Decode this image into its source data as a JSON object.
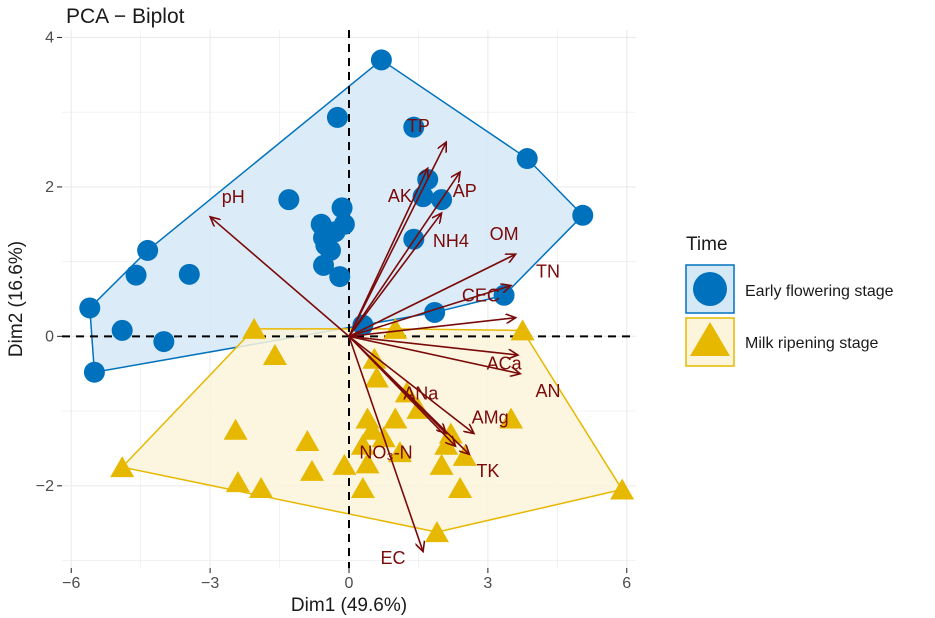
{
  "chart_data": {
    "type": "scatter",
    "title": "PCA − Biplot",
    "xlabel": "Dim1 (49.6%)",
    "ylabel": "Dim2 (16.6%)",
    "xlim": [
      -6.2,
      6.2
    ],
    "ylim": [
      -3.1,
      4.1
    ],
    "xticks": [
      -6,
      -3,
      0,
      3,
      6
    ],
    "xtick_labels": [
      "−6",
      "−3",
      "0",
      "3",
      "6"
    ],
    "yticks": [
      -2,
      0,
      2,
      4
    ],
    "ytick_labels": [
      "−2",
      "0",
      "2",
      "4"
    ],
    "grid": true,
    "legend": {
      "title": "Time",
      "position": "right",
      "entries": [
        "Early flowering stage",
        "Milk ripening stage"
      ]
    },
    "series": [
      {
        "name": "Early flowering stage",
        "marker": "circle",
        "color": "#0072BD",
        "fill": "#D5E8F6",
        "points": [
          [
            0.7,
            3.7
          ],
          [
            -0.25,
            2.93
          ],
          [
            1.4,
            2.8
          ],
          [
            3.85,
            2.38
          ],
          [
            5.05,
            1.62
          ],
          [
            1.7,
            2.1
          ],
          [
            1.6,
            1.87
          ],
          [
            2.0,
            1.83
          ],
          [
            -1.3,
            1.83
          ],
          [
            -0.15,
            1.72
          ],
          [
            -0.1,
            1.5
          ],
          [
            -0.6,
            1.5
          ],
          [
            -0.3,
            1.4
          ],
          [
            -0.55,
            1.32
          ],
          [
            -0.5,
            1.22
          ],
          [
            -0.4,
            1.15
          ],
          [
            1.4,
            1.3
          ],
          [
            -4.35,
            1.15
          ],
          [
            -3.45,
            0.83
          ],
          [
            -4.6,
            0.82
          ],
          [
            -0.2,
            0.8
          ],
          [
            -0.55,
            0.95
          ],
          [
            3.35,
            0.55
          ],
          [
            1.85,
            0.32
          ],
          [
            -5.6,
            0.38
          ],
          [
            -4.9,
            0.08
          ],
          [
            -4.0,
            -0.07
          ],
          [
            0.3,
            0.15
          ],
          [
            -5.5,
            -0.48
          ]
        ]
      },
      {
        "name": "Milk ripening stage",
        "marker": "triangle",
        "color": "#E7B800",
        "fill": "#FCF5DC",
        "points": [
          [
            -2.05,
            0.1
          ],
          [
            1.0,
            0.1
          ],
          [
            3.75,
            0.08
          ],
          [
            -1.6,
            -0.25
          ],
          [
            0.55,
            -0.3
          ],
          [
            0.6,
            -0.55
          ],
          [
            1.25,
            -0.75
          ],
          [
            1.5,
            -0.97
          ],
          [
            1.0,
            -1.1
          ],
          [
            0.4,
            -1.1
          ],
          [
            3.5,
            -1.1
          ],
          [
            0.5,
            -1.25
          ],
          [
            -2.45,
            -1.25
          ],
          [
            0.75,
            -1.35
          ],
          [
            2.2,
            -1.3
          ],
          [
            0.3,
            -1.45
          ],
          [
            -0.9,
            -1.4
          ],
          [
            1.1,
            -1.55
          ],
          [
            2.1,
            -1.45
          ],
          [
            2.5,
            -1.6
          ],
          [
            -0.1,
            -1.72
          ],
          [
            0.4,
            -1.7
          ],
          [
            2.0,
            -1.72
          ],
          [
            -0.8,
            -1.8
          ],
          [
            -4.9,
            -1.75
          ],
          [
            -2.4,
            -1.95
          ],
          [
            -1.9,
            -2.03
          ],
          [
            0.3,
            -2.03
          ],
          [
            2.4,
            -2.03
          ],
          [
            5.9,
            -2.05
          ],
          [
            1.9,
            -2.62
          ]
        ]
      }
    ],
    "loadings": [
      {
        "label": "TP",
        "x": 2.1,
        "y": 2.6
      },
      {
        "label": "AK",
        "x": 1.7,
        "y": 2.25
      },
      {
        "label": "AP",
        "x": 2.4,
        "y": 2.2
      },
      {
        "label": "pH",
        "x": -3.0,
        "y": 1.6
      },
      {
        "label": "NH4",
        "x": 2.0,
        "y": 1.65
      },
      {
        "label": "OM",
        "x": 3.6,
        "y": 1.1
      },
      {
        "label": "TN",
        "x": 3.5,
        "y": 0.68
      },
      {
        "label": "CEC",
        "x": 3.6,
        "y": 0.25
      },
      {
        "label": "ACa",
        "x": 3.65,
        "y": -0.25
      },
      {
        "label": "AN",
        "x": 3.7,
        "y": -0.5
      },
      {
        "label": "ANa",
        "x": 2.1,
        "y": -1.3
      },
      {
        "label": "AMg",
        "x": 2.7,
        "y": -1.3
      },
      {
        "label": "NO₃-N",
        "x": 2.3,
        "y": -1.47
      },
      {
        "label": "TK",
        "x": 2.6,
        "y": -1.58
      },
      {
        "label": "EC",
        "x": 1.6,
        "y": -2.88
      }
    ],
    "loading_labels": [
      {
        "label": "TP",
        "x": 1.5,
        "y": 2.8
      },
      {
        "label": "AK",
        "x": 1.1,
        "y": 1.86
      },
      {
        "label": "AP",
        "x": 2.5,
        "y": 1.93
      },
      {
        "label": "pH",
        "x": -2.5,
        "y": 1.85
      },
      {
        "label": "NH4",
        "x": 2.2,
        "y": 1.26
      },
      {
        "label": "OM",
        "x": 3.35,
        "y": 1.35
      },
      {
        "label": "TN",
        "x": 4.3,
        "y": 0.85
      },
      {
        "label": "CEC",
        "x": 2.85,
        "y": 0.53
      },
      {
        "label": "ACa",
        "x": 3.35,
        "y": -0.38
      },
      {
        "label": "AN",
        "x": 4.3,
        "y": -0.75
      },
      {
        "label": "ANa",
        "x": 1.55,
        "y": -0.78
      },
      {
        "label": "AMg",
        "x": 3.05,
        "y": -1.1
      },
      {
        "label": "NO₃-N",
        "x": 0.8,
        "y": -1.57
      },
      {
        "label": "TK",
        "x": 3.0,
        "y": -1.82
      },
      {
        "label": "EC",
        "x": 0.95,
        "y": -2.98
      }
    ]
  }
}
